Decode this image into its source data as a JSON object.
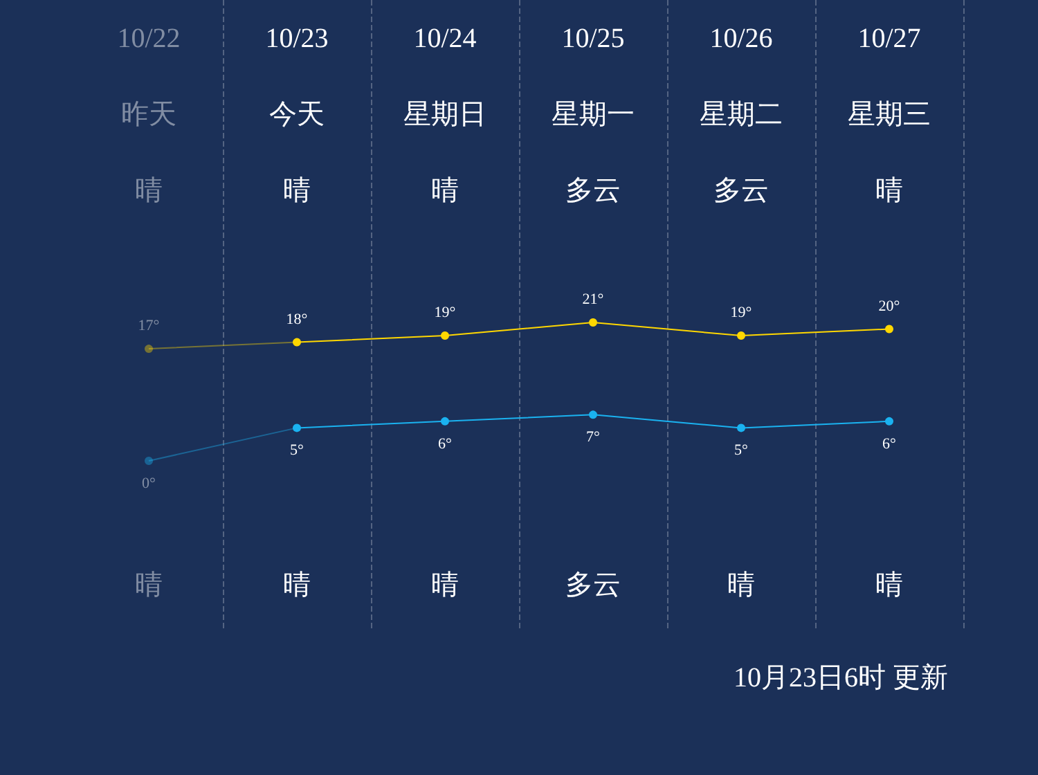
{
  "chart_data": {
    "type": "line",
    "categories": [
      "10/22",
      "10/23",
      "10/24",
      "10/25",
      "10/26",
      "10/27"
    ],
    "series": [
      {
        "color": "#ffd700",
        "values": [
          17,
          18,
          19,
          21,
          19,
          20
        ],
        "value_labels": [
          "17°",
          "18°",
          "19°",
          "21°",
          "19°",
          "20°"
        ]
      },
      {
        "color": "#1ab2f0",
        "values": [
          0,
          5,
          6,
          7,
          5,
          6
        ],
        "value_labels": [
          "0°",
          "5°",
          "6°",
          "7°",
          "5°",
          "6°"
        ]
      }
    ],
    "annotations": [
      "昨天",
      "今天",
      "星期日",
      "星期一",
      "星期二",
      "星期三",
      "晴",
      "晴",
      "晴",
      "多云",
      "多云",
      "晴",
      "晴",
      "晴",
      "晴",
      "多云",
      "晴",
      "晴",
      "10月23日6时 更新"
    ],
    "grid": "x",
    "marker": "circle",
    "line_style": "solid"
  }
}
